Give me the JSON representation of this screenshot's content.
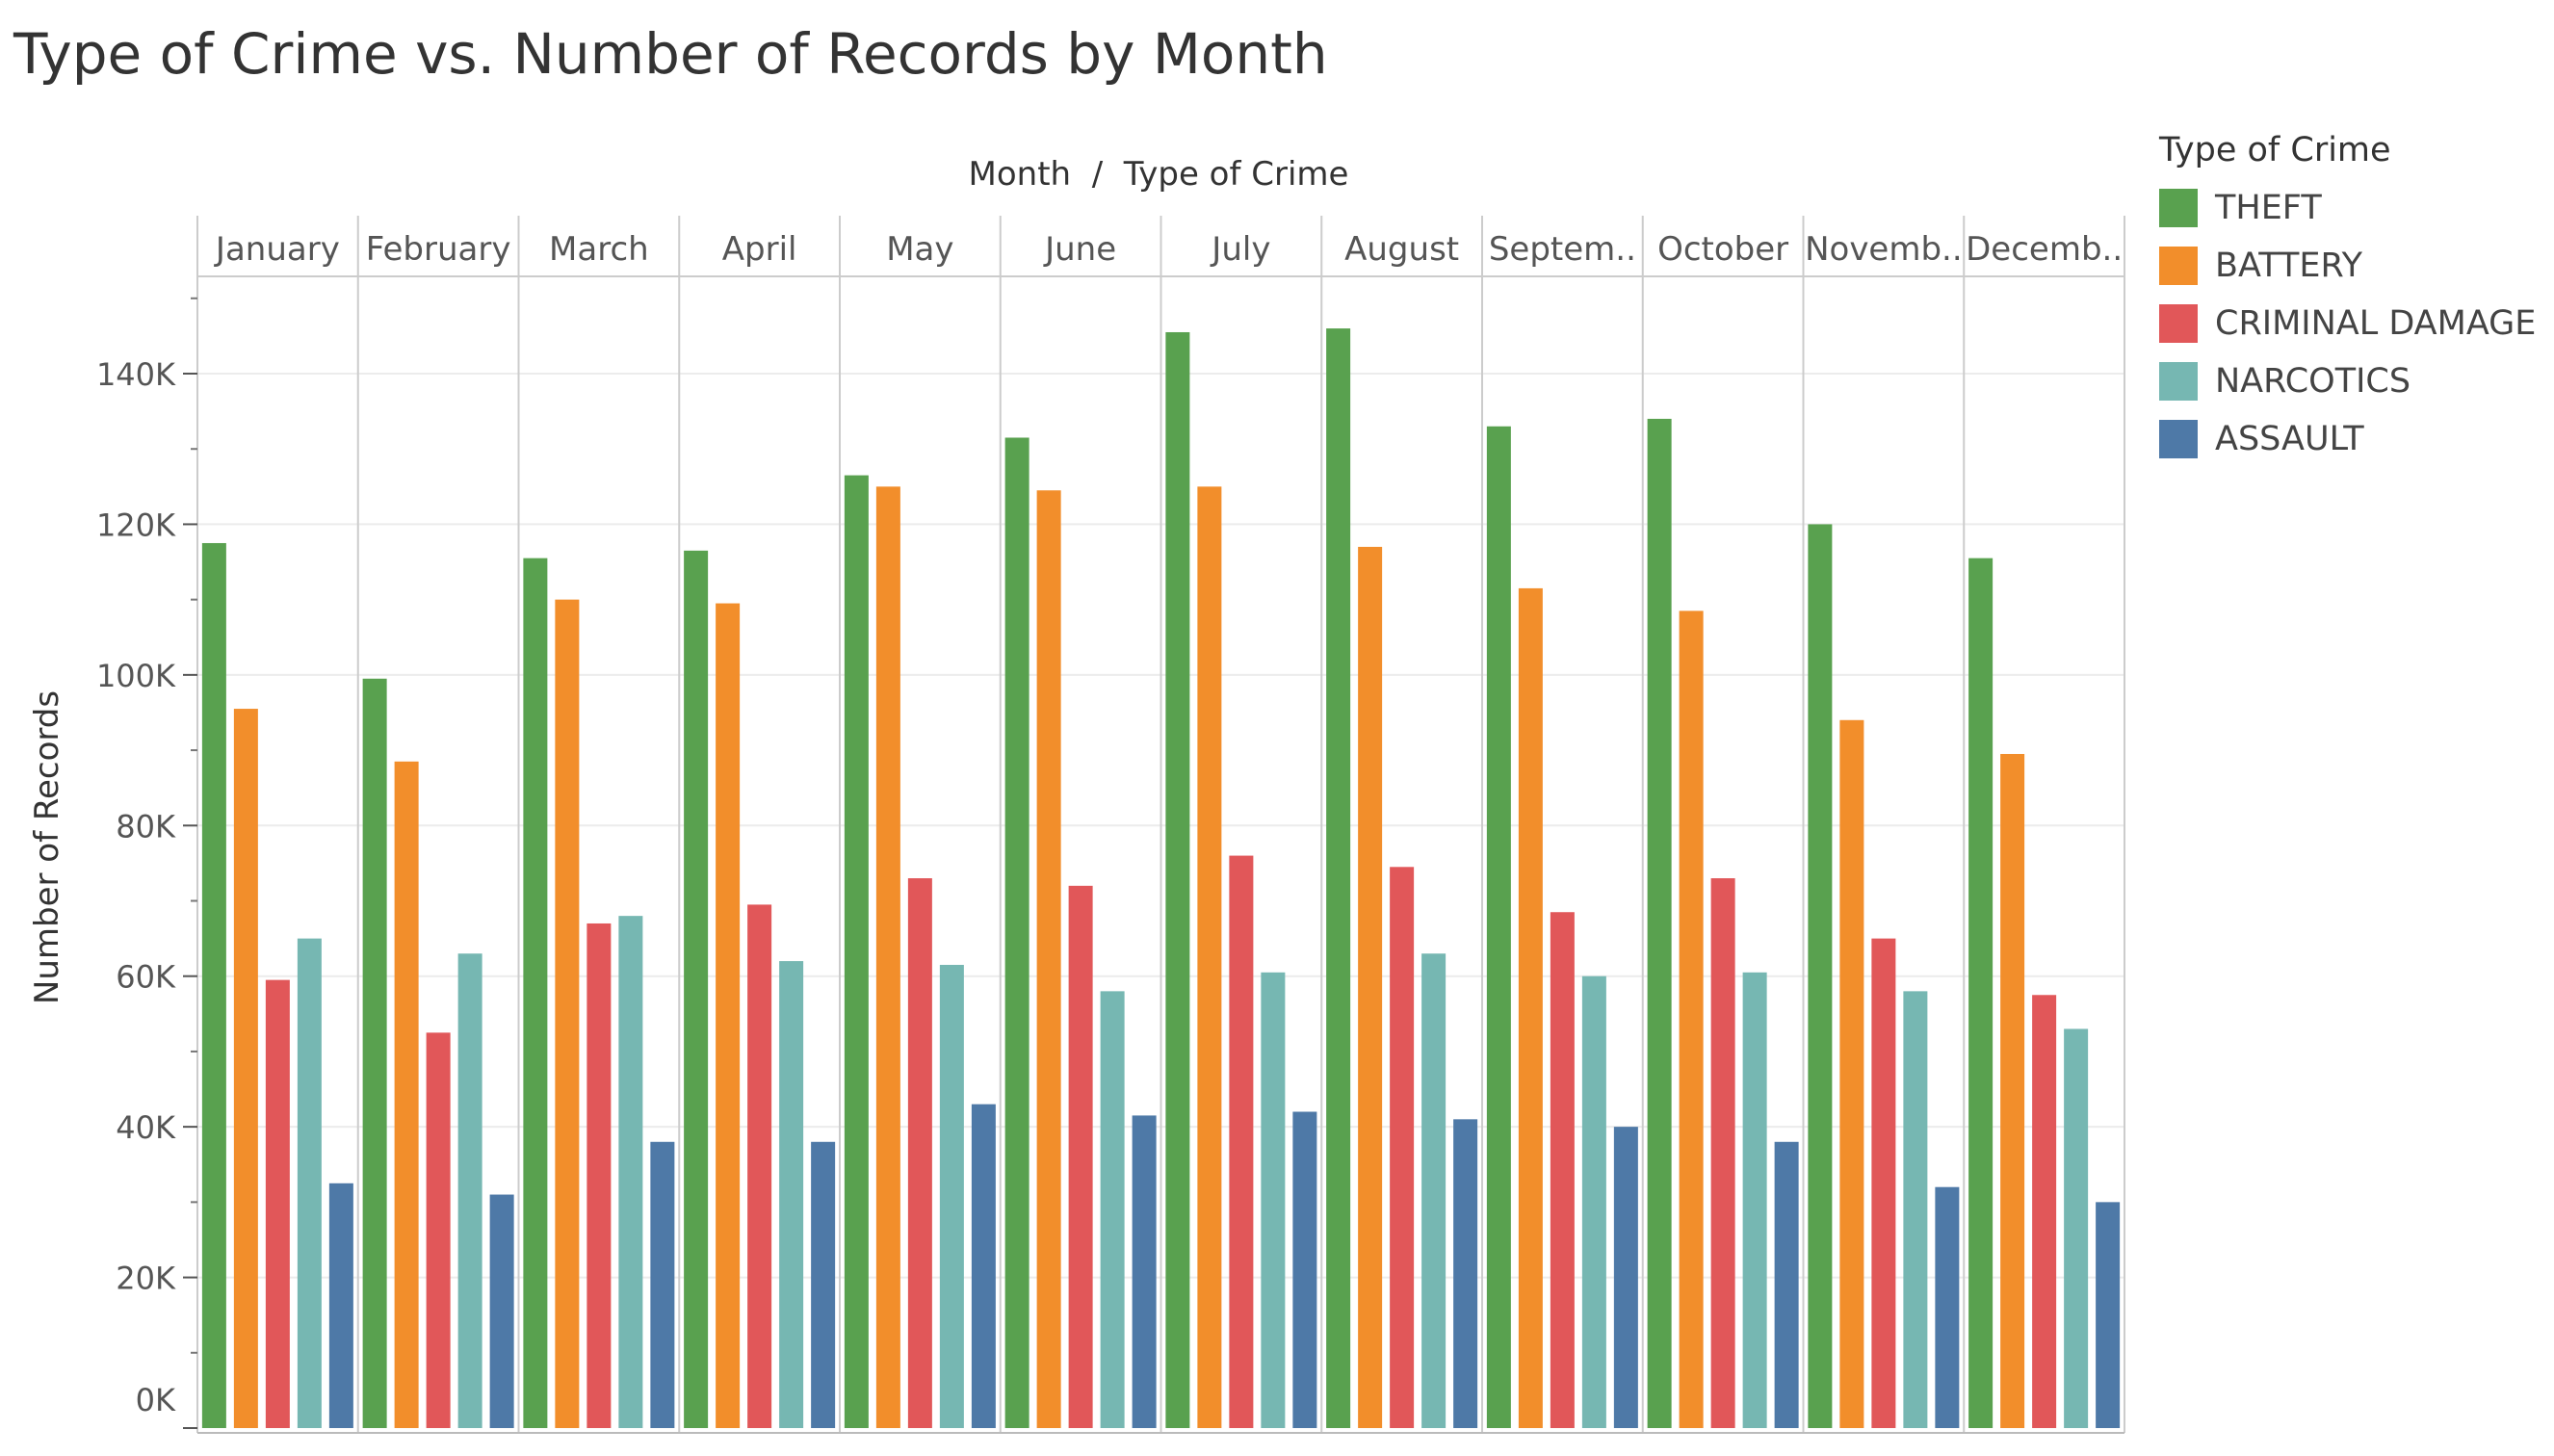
{
  "title": "Type of Crime vs. Number of Records by Month",
  "chart_data": {
    "type": "bar",
    "title": "Type of Crime vs. Number of Records by Month",
    "header_label": "Month  /  Type of Crime",
    "ylabel": "Number of Records",
    "ylim": [
      0,
      150000
    ],
    "y_ticks": [
      0,
      20000,
      40000,
      60000,
      80000,
      100000,
      120000,
      140000
    ],
    "y_tick_labels": [
      "0K",
      "20K",
      "40K",
      "60K",
      "80K",
      "100K",
      "120K",
      "140K"
    ],
    "gridlines": true,
    "legend_position": "right",
    "categories": [
      "January",
      "February",
      "March",
      "April",
      "May",
      "June",
      "July",
      "August",
      "Septem..",
      "October",
      "Novemb..",
      "Decemb.."
    ],
    "series": [
      {
        "name": "THEFT",
        "color": "#59A14F",
        "values": [
          117500,
          99500,
          115500,
          116500,
          126500,
          131500,
          145500,
          146000,
          133000,
          134000,
          120000,
          115500
        ]
      },
      {
        "name": "BATTERY",
        "color": "#F28E2B",
        "values": [
          95500,
          88500,
          110000,
          109500,
          125000,
          124500,
          125000,
          117000,
          111500,
          108500,
          94000,
          89500
        ]
      },
      {
        "name": "CRIMINAL DAMAGE",
        "color": "#E15759",
        "values": [
          59500,
          52500,
          67000,
          69500,
          73000,
          72000,
          76000,
          74500,
          68500,
          73000,
          65000,
          57500
        ]
      },
      {
        "name": "NARCOTICS",
        "color": "#76B7B2",
        "values": [
          65000,
          63000,
          68000,
          62000,
          61500,
          58000,
          60500,
          63000,
          60000,
          60500,
          58000,
          53000
        ]
      },
      {
        "name": "ASSAULT",
        "color": "#4E79A7",
        "values": [
          32500,
          31000,
          38000,
          38000,
          43000,
          41500,
          42000,
          41000,
          40000,
          38000,
          32000,
          30000
        ]
      }
    ]
  }
}
